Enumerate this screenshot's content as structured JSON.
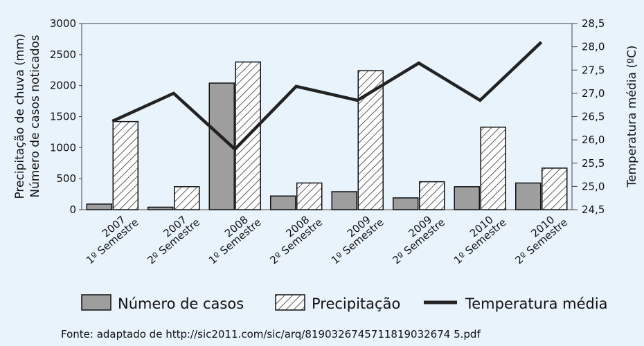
{
  "chart_data": {
    "type": "bar",
    "categories": [
      [
        "2007",
        "1º Semestre"
      ],
      [
        "2007",
        "2º Semestre"
      ],
      [
        "2008",
        "1º Semestre"
      ],
      [
        "2008",
        "2º Semestre"
      ],
      [
        "2009",
        "1º Semestre"
      ],
      [
        "2009",
        "2º Semestre"
      ],
      [
        "2010",
        "1º Semestre"
      ],
      [
        "2010",
        "2º Semestre"
      ]
    ],
    "series": [
      {
        "name": "Número de casos",
        "kind": "bar",
        "axis": "left",
        "fill": "#9e9e9e",
        "values": [
          90,
          40,
          2040,
          220,
          290,
          190,
          370,
          430
        ]
      },
      {
        "name": "Precipitação",
        "kind": "bar-hatched",
        "axis": "left",
        "fill": "#ffffff",
        "values": [
          1420,
          370,
          2380,
          430,
          2240,
          450,
          1330,
          670
        ]
      },
      {
        "name": "Temperatura média",
        "kind": "line",
        "axis": "right",
        "color": "#222222",
        "values": [
          26.4,
          27.0,
          25.8,
          27.15,
          26.85,
          27.65,
          26.85,
          28.1
        ]
      }
    ],
    "y_left": {
      "label_lines": [
        "Precipitação de chuva (mm)",
        "Número de casos noticados"
      ],
      "ticks": [
        "3000",
        "2500",
        "2000",
        "1500",
        "1000",
        "500",
        "0"
      ],
      "ylim": [
        0,
        3000
      ]
    },
    "y_right": {
      "label": "Temperatura média (ºC)",
      "ticks": [
        "28,5",
        "28,0",
        "27,5",
        "27,0",
        "26,5",
        "26,0",
        "25,5",
        "25,0",
        "24,5"
      ],
      "ylim": [
        24.5,
        28.5
      ]
    },
    "legend": [
      "Número de casos",
      "Precipitação",
      "Temperatura média"
    ],
    "legend_position": "bottom",
    "source": "Fonte: adaptado de http://sic2011.com/sic/arq/8190326745711819032674 5.pdf",
    "colors": {
      "background": "#e8f3fb",
      "cases_bar": "#9e9e9e",
      "line": "#222222"
    }
  }
}
